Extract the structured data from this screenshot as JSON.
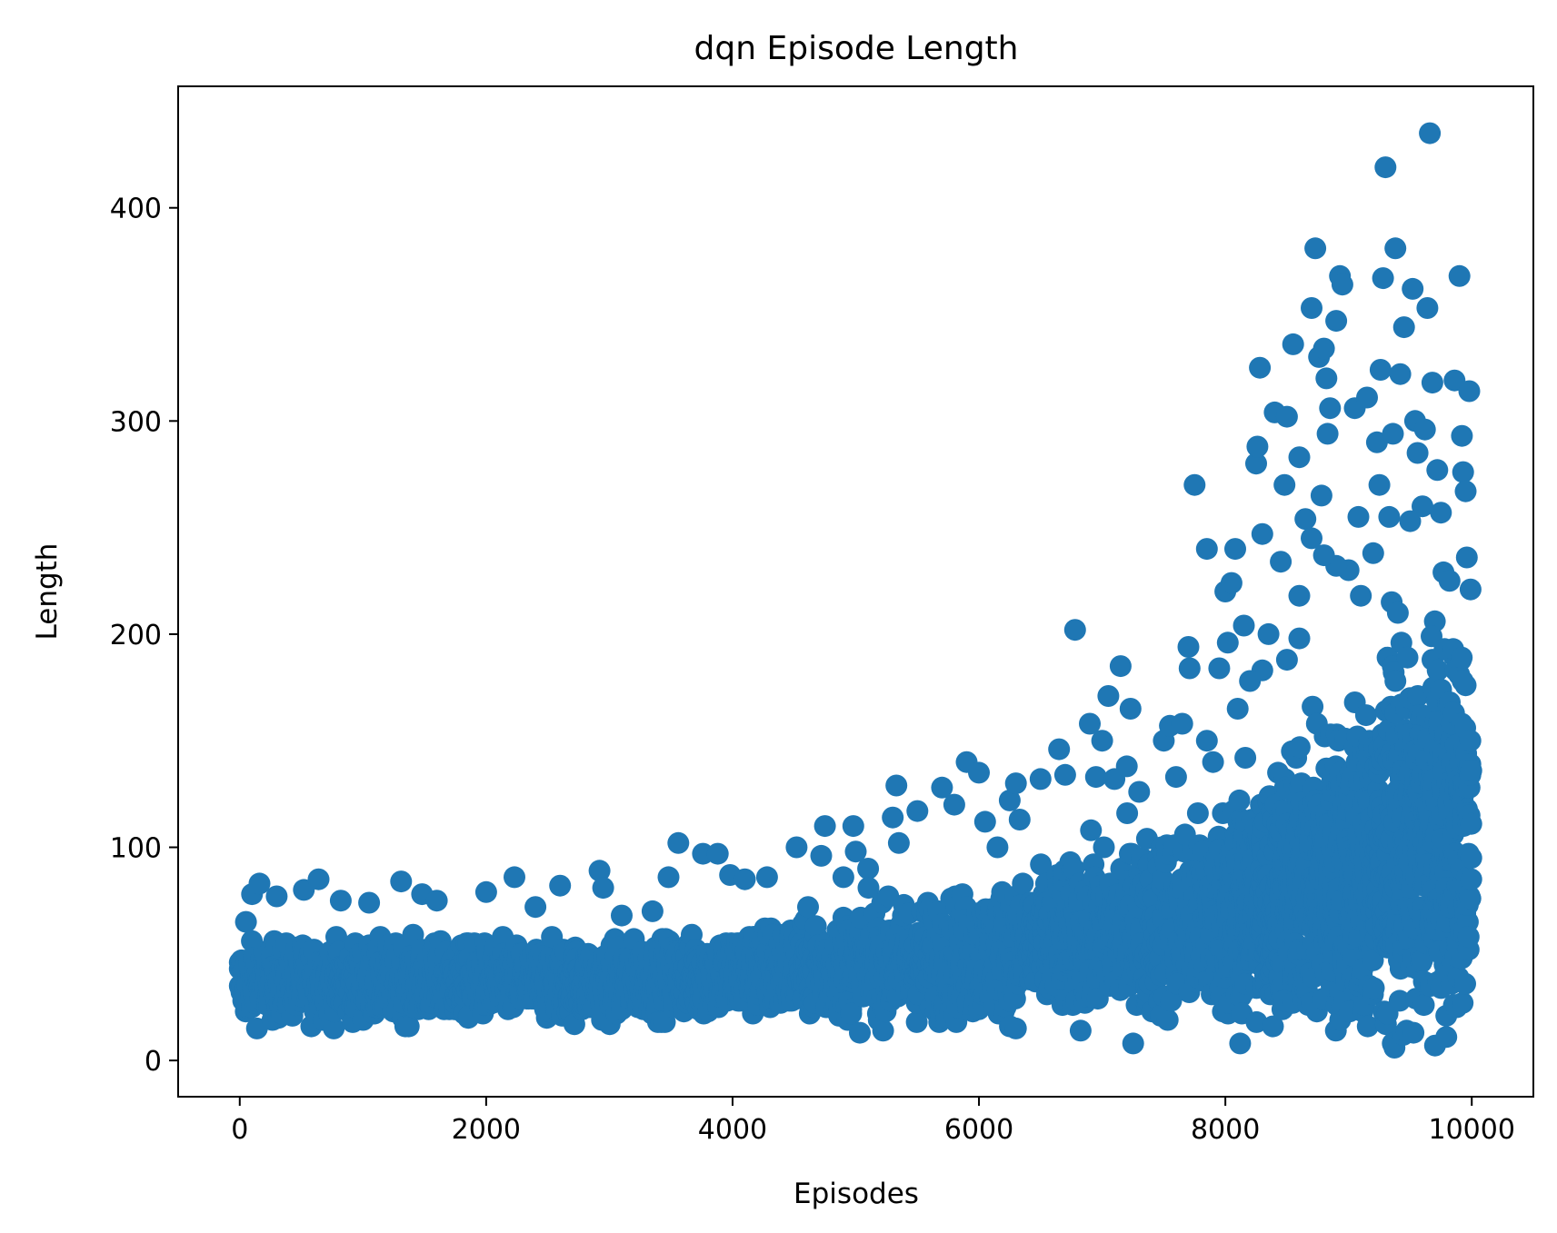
{
  "chart_data": {
    "type": "scatter",
    "title": "dqn Episode Length",
    "xlabel": "Episodes",
    "ylabel": "Length",
    "xlim": [
      -500,
      10500
    ],
    "ylim": [
      -17,
      457
    ],
    "x_ticks": [
      0,
      2000,
      4000,
      6000,
      8000,
      10000
    ],
    "x_tick_labels": [
      "0",
      "2000",
      "4000",
      "6000",
      "8000",
      "10000"
    ],
    "y_ticks": [
      0,
      100,
      200,
      300,
      400
    ],
    "y_tick_labels": [
      "0",
      "100",
      "200",
      "300",
      "400"
    ],
    "grid": false,
    "series": [
      {
        "color": "#1f77b4",
        "marker": "circle",
        "points": [
          [
            0,
            35
          ],
          [
            50,
            65
          ],
          [
            100,
            78
          ],
          [
            160,
            83
          ],
          [
            300,
            77
          ],
          [
            520,
            80
          ],
          [
            640,
            85
          ],
          [
            820,
            75
          ],
          [
            1050,
            74
          ],
          [
            1310,
            84
          ],
          [
            1480,
            78
          ],
          [
            1600,
            75
          ],
          [
            2000,
            79
          ],
          [
            2230,
            86
          ],
          [
            2400,
            72
          ],
          [
            2600,
            82
          ],
          [
            2920,
            89
          ],
          [
            2950,
            81
          ],
          [
            3100,
            68
          ],
          [
            3350,
            70
          ],
          [
            3480,
            86
          ],
          [
            3560,
            102
          ],
          [
            3760,
            97
          ],
          [
            3880,
            97
          ],
          [
            3980,
            87
          ],
          [
            4100,
            85
          ],
          [
            4280,
            86
          ],
          [
            4520,
            100
          ],
          [
            4720,
            96
          ],
          [
            4750,
            110
          ],
          [
            4900,
            86
          ],
          [
            4980,
            110
          ],
          [
            5000,
            98
          ],
          [
            5100,
            90
          ],
          [
            5300,
            114
          ],
          [
            5330,
            129
          ],
          [
            5350,
            102
          ],
          [
            5500,
            117
          ],
          [
            5700,
            128
          ],
          [
            5800,
            120
          ],
          [
            5900,
            140
          ],
          [
            6000,
            135
          ],
          [
            6050,
            112
          ],
          [
            6150,
            100
          ],
          [
            6250,
            122
          ],
          [
            6300,
            130
          ],
          [
            6330,
            113
          ],
          [
            6500,
            132
          ],
          [
            6650,
            146
          ],
          [
            6700,
            134
          ],
          [
            6780,
            202
          ],
          [
            6900,
            158
          ],
          [
            6950,
            133
          ],
          [
            7000,
            150
          ],
          [
            7050,
            171
          ],
          [
            7100,
            132
          ],
          [
            7150,
            185
          ],
          [
            7200,
            138
          ],
          [
            7230,
            165
          ],
          [
            7300,
            126
          ],
          [
            7500,
            150
          ],
          [
            7550,
            157
          ],
          [
            7650,
            158
          ],
          [
            7700,
            194
          ],
          [
            7710,
            184
          ],
          [
            7750,
            270
          ],
          [
            7850,
            240
          ],
          [
            7850,
            150
          ],
          [
            7950,
            184
          ],
          [
            8000,
            220
          ],
          [
            8020,
            196
          ],
          [
            8050,
            224
          ],
          [
            8080,
            240
          ],
          [
            8150,
            204
          ],
          [
            8250,
            280
          ],
          [
            8260,
            288
          ],
          [
            8280,
            325
          ],
          [
            8300,
            247
          ],
          [
            8350,
            200
          ],
          [
            8400,
            304
          ],
          [
            8450,
            234
          ],
          [
            8480,
            270
          ],
          [
            8500,
            302
          ],
          [
            8550,
            336
          ],
          [
            8600,
            283
          ],
          [
            8650,
            254
          ],
          [
            8700,
            353
          ],
          [
            8730,
            381
          ],
          [
            8760,
            330
          ],
          [
            8780,
            265
          ],
          [
            8800,
            334
          ],
          [
            8820,
            320
          ],
          [
            8830,
            294
          ],
          [
            8850,
            306
          ],
          [
            8900,
            347
          ],
          [
            8930,
            368
          ],
          [
            8950,
            364
          ],
          [
            9050,
            306
          ],
          [
            9080,
            255
          ],
          [
            9150,
            311
          ],
          [
            9230,
            290
          ],
          [
            9250,
            270
          ],
          [
            9260,
            324
          ],
          [
            9280,
            367
          ],
          [
            9300,
            419
          ],
          [
            9330,
            255
          ],
          [
            9360,
            294
          ],
          [
            9380,
            381
          ],
          [
            9420,
            322
          ],
          [
            9450,
            344
          ],
          [
            9520,
            362
          ],
          [
            9540,
            300
          ],
          [
            9560,
            285
          ],
          [
            9600,
            260
          ],
          [
            9620,
            296
          ],
          [
            9640,
            353
          ],
          [
            9660,
            435
          ],
          [
            9680,
            318
          ],
          [
            9720,
            277
          ],
          [
            9750,
            257
          ],
          [
            9770,
            229
          ],
          [
            9820,
            225
          ],
          [
            9860,
            319
          ],
          [
            9900,
            368
          ],
          [
            9920,
            293
          ],
          [
            9930,
            276
          ],
          [
            9950,
            267
          ],
          [
            9960,
            236
          ],
          [
            9980,
            314
          ],
          [
            9990,
            221
          ],
          [
            9500,
            253
          ],
          [
            9350,
            215
          ],
          [
            9200,
            238
          ],
          [
            9000,
            230
          ],
          [
            9100,
            218
          ],
          [
            8900,
            232
          ],
          [
            8700,
            245
          ],
          [
            8600,
            218
          ],
          [
            8500,
            188
          ],
          [
            8600,
            198
          ],
          [
            8800,
            237
          ],
          [
            9400,
            210
          ],
          [
            9700,
            206
          ],
          [
            9850,
            190
          ],
          [
            9950,
            176
          ],
          [
            8300,
            183
          ],
          [
            8200,
            178
          ],
          [
            8100,
            165
          ],
          [
            7900,
            140
          ],
          [
            7600,
            133
          ]
        ]
      }
    ]
  }
}
